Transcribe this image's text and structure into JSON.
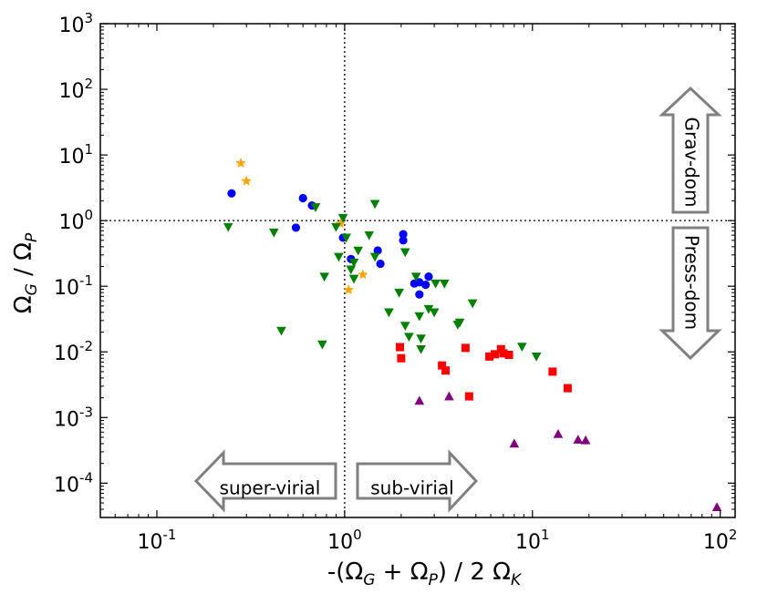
{
  "chart_data": {
    "type": "scatter",
    "xscale": "log",
    "yscale": "log",
    "xlim": [
      0.05,
      120
    ],
    "ylim": [
      3e-05,
      1000
    ],
    "xlabel": {
      "prefix": "-(",
      "o1": "Ω",
      "s1": "G",
      "mid": " + ",
      "o2": "Ω",
      "s2": "P",
      "suffix": ") / 2 ",
      "o3": "Ω",
      "s3": "K"
    },
    "ylabel": {
      "o1": "Ω",
      "s1": "G",
      "mid": " / ",
      "o2": "Ω",
      "s2": "P"
    },
    "x_ticks": [
      {
        "value": 0.1,
        "base": "10",
        "exp": "-1"
      },
      {
        "value": 1,
        "base": "10",
        "exp": "0"
      },
      {
        "value": 10,
        "base": "10",
        "exp": "1"
      },
      {
        "value": 100,
        "base": "10",
        "exp": "2"
      }
    ],
    "y_ticks": [
      {
        "value": 0.0001,
        "base": "10",
        "exp": "-4"
      },
      {
        "value": 0.001,
        "base": "10",
        "exp": "-3"
      },
      {
        "value": 0.01,
        "base": "10",
        "exp": "-2"
      },
      {
        "value": 0.1,
        "base": "10",
        "exp": "-1"
      },
      {
        "value": 1,
        "base": "10",
        "exp": "0"
      },
      {
        "value": 10,
        "base": "10",
        "exp": "1"
      },
      {
        "value": 100,
        "base": "10",
        "exp": "2"
      },
      {
        "value": 1000,
        "base": "10",
        "exp": "3"
      }
    ],
    "reference_lines": [
      {
        "axis": "x",
        "value": 1,
        "style": "dotted"
      },
      {
        "axis": "y",
        "value": 1,
        "style": "dotted"
      }
    ],
    "annotations": [
      {
        "text": "super-virial",
        "direction": "left"
      },
      {
        "text": "sub-virial",
        "direction": "right"
      },
      {
        "text": "Grav-dom",
        "direction": "up"
      },
      {
        "text": "Press-dom",
        "direction": "down"
      }
    ],
    "series": [
      {
        "name": "orange stars",
        "marker": "star",
        "color": "#ffa500",
        "points": [
          [
            0.28,
            7.5
          ],
          [
            0.3,
            4.0
          ],
          [
            0.95,
            0.9
          ],
          [
            1.25,
            0.15
          ],
          [
            1.05,
            0.088
          ]
        ]
      },
      {
        "name": "blue circles",
        "marker": "circle",
        "color": "#0000ff",
        "points": [
          [
            0.25,
            2.6
          ],
          [
            0.6,
            2.2
          ],
          [
            0.67,
            1.7
          ],
          [
            0.55,
            0.78
          ],
          [
            0.98,
            0.55
          ],
          [
            1.08,
            0.26
          ],
          [
            1.5,
            0.35
          ],
          [
            1.55,
            0.22
          ],
          [
            2.05,
            0.62
          ],
          [
            2.05,
            0.5
          ],
          [
            2.35,
            0.11
          ],
          [
            2.5,
            0.115
          ],
          [
            2.7,
            0.105
          ],
          [
            2.8,
            0.14
          ],
          [
            2.5,
            0.075
          ]
        ]
      },
      {
        "name": "green down-triangles",
        "marker": "triangle-down",
        "color": "#008000",
        "points": [
          [
            0.24,
            0.8
          ],
          [
            0.42,
            0.66
          ],
          [
            0.46,
            0.021
          ],
          [
            0.7,
            1.6
          ],
          [
            0.76,
            0.013
          ],
          [
            0.78,
            0.14
          ],
          [
            0.9,
            0.8
          ],
          [
            0.93,
            0.28
          ],
          [
            0.98,
            1.1
          ],
          [
            1.02,
            0.55
          ],
          [
            1.08,
            0.18
          ],
          [
            1.12,
            0.13
          ],
          [
            1.18,
            0.35
          ],
          [
            1.12,
            0.23
          ],
          [
            1.35,
            0.6
          ],
          [
            1.45,
            1.8
          ],
          [
            1.45,
            0.28
          ],
          [
            1.72,
            0.04
          ],
          [
            1.95,
            0.08
          ],
          [
            2.1,
            0.025
          ],
          [
            2.1,
            0.33
          ],
          [
            2.2,
            0.017
          ],
          [
            2.4,
            0.14
          ],
          [
            2.5,
            0.035
          ],
          [
            2.55,
            0.016
          ],
          [
            2.55,
            0.011
          ],
          [
            2.8,
            0.045
          ],
          [
            3.0,
            0.04
          ],
          [
            3.05,
            0.11
          ],
          [
            3.4,
            0.11
          ],
          [
            4.0,
            0.026
          ],
          [
            4.1,
            0.028
          ],
          [
            4.8,
            0.055
          ],
          [
            8.8,
            0.012
          ],
          [
            10.5,
            0.0085
          ]
        ]
      },
      {
        "name": "red squares",
        "marker": "square",
        "color": "#ff0000",
        "points": [
          [
            1.97,
            0.0118
          ],
          [
            2.0,
            0.008
          ],
          [
            3.3,
            0.0062
          ],
          [
            3.45,
            0.0052
          ],
          [
            4.4,
            0.0115
          ],
          [
            4.6,
            0.0021
          ],
          [
            5.9,
            0.0085
          ],
          [
            6.3,
            0.0092
          ],
          [
            6.8,
            0.011
          ],
          [
            7.0,
            0.0095
          ],
          [
            7.5,
            0.009
          ],
          [
            12.8,
            0.005
          ],
          [
            15.4,
            0.0028
          ]
        ]
      },
      {
        "name": "purple up-triangles",
        "marker": "triangle-up",
        "color": "#800080",
        "points": [
          [
            2.5,
            0.0018
          ],
          [
            3.6,
            0.0021
          ],
          [
            8.0,
            0.0004
          ],
          [
            13.7,
            0.00056
          ],
          [
            17.5,
            0.00046
          ],
          [
            19.2,
            0.00045
          ],
          [
            96,
            4.3e-05
          ]
        ]
      }
    ]
  }
}
